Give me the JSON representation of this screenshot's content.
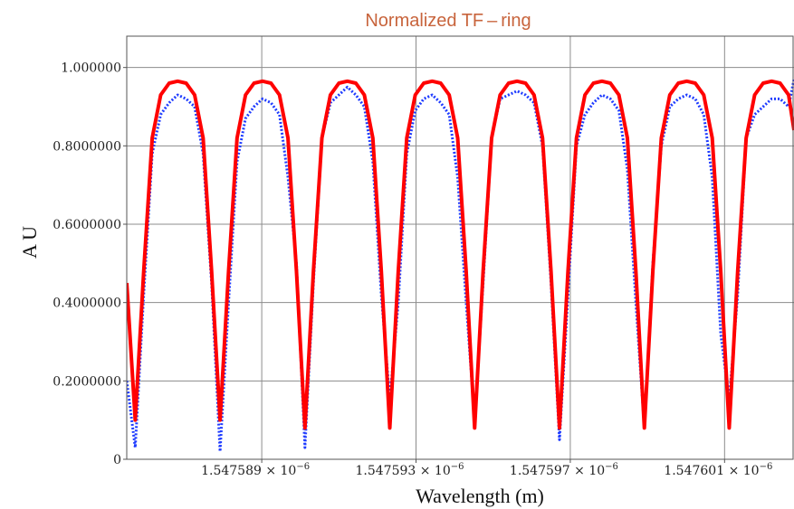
{
  "chart_data": {
    "type": "line",
    "title": "Normalized  TF – ring",
    "xlabel": "Wavelength  (m)",
    "ylabel": "A U",
    "x_unit_multiplier": "× 10⁻⁶",
    "xlim": [
      1.5475855,
      1.5476028
    ],
    "ylim": [
      0,
      1.08
    ],
    "grid": true,
    "x_ticks": [
      {
        "value": 1.547589,
        "label": "1.547589 × 10",
        "exp": "−6"
      },
      {
        "value": 1.547593,
        "label": "1.547593 × 10",
        "exp": "−6"
      },
      {
        "value": 1.547597,
        "label": "1.547597 × 10",
        "exp": "−6"
      },
      {
        "value": 1.547601,
        "label": "1.547601 × 10",
        "exp": "−6"
      }
    ],
    "y_ticks": [
      {
        "value": 0,
        "label": "0"
      },
      {
        "value": 0.2,
        "label": "0.2000000"
      },
      {
        "value": 0.4,
        "label": "0.4000000"
      },
      {
        "value": 0.6,
        "label": "0.6000000"
      },
      {
        "value": 0.8,
        "label": "0.8000000"
      },
      {
        "value": 1.0,
        "label": "1.000000"
      }
    ],
    "series": [
      {
        "color": "#ff0000",
        "style": "solid",
        "x": [
          1.5475855,
          1.54758572,
          1.54758594,
          1.54758616,
          1.54758638,
          1.5475866,
          1.54758682,
          1.54758704,
          1.54758726,
          1.54758748,
          1.5475877,
          1.54758792,
          1.54758814,
          1.54758836,
          1.54758858,
          1.5475888,
          1.54758902,
          1.54758924,
          1.54758946,
          1.54758968,
          1.5475899,
          1.54759012,
          1.54759034,
          1.54759056,
          1.54759078,
          1.547591,
          1.54759122,
          1.54759144,
          1.54759166,
          1.54759188,
          1.5475921,
          1.54759232,
          1.54759254,
          1.54759276,
          1.54759298,
          1.5475932,
          1.54759342,
          1.54759364,
          1.54759386,
          1.54759408,
          1.5475943,
          1.54759452,
          1.54759474,
          1.54759496,
          1.54759518,
          1.5475954,
          1.54759562,
          1.54759584,
          1.54759606,
          1.54759628,
          1.5475965,
          1.54759672,
          1.54759694,
          1.54759716,
          1.54759738,
          1.5475976,
          1.54759782,
          1.54759804,
          1.54759826,
          1.54759848,
          1.5475987,
          1.54759892,
          1.54759914,
          1.54759936,
          1.54759958,
          1.5475998,
          1.54760002,
          1.54760024,
          1.54760046,
          1.54760068,
          1.5476009,
          1.54760112,
          1.54760134,
          1.54760156,
          1.54760178,
          1.547602,
          1.54760222,
          1.54760244,
          1.54760266,
          1.5476028
        ],
        "y": [
          0.45,
          0.1,
          0.48,
          0.82,
          0.93,
          0.96,
          0.965,
          0.96,
          0.93,
          0.82,
          0.48,
          0.1,
          0.48,
          0.82,
          0.93,
          0.96,
          0.965,
          0.96,
          0.93,
          0.82,
          0.48,
          0.08,
          0.48,
          0.82,
          0.93,
          0.96,
          0.965,
          0.96,
          0.93,
          0.82,
          0.48,
          0.08,
          0.48,
          0.82,
          0.93,
          0.96,
          0.965,
          0.96,
          0.93,
          0.82,
          0.48,
          0.08,
          0.48,
          0.82,
          0.93,
          0.96,
          0.965,
          0.96,
          0.93,
          0.82,
          0.48,
          0.08,
          0.48,
          0.82,
          0.93,
          0.96,
          0.965,
          0.96,
          0.93,
          0.82,
          0.48,
          0.08,
          0.48,
          0.82,
          0.93,
          0.96,
          0.965,
          0.96,
          0.93,
          0.82,
          0.48,
          0.08,
          0.48,
          0.82,
          0.93,
          0.96,
          0.965,
          0.96,
          0.93,
          0.84
        ]
      },
      {
        "color": "#1f3cff",
        "style": "dotted",
        "x": [
          1.5475855,
          1.54758572,
          1.54758594,
          1.54758616,
          1.54758638,
          1.5475866,
          1.54758682,
          1.54758704,
          1.54758726,
          1.54758748,
          1.5475877,
          1.54758792,
          1.54758814,
          1.54758836,
          1.54758858,
          1.5475888,
          1.54758902,
          1.54758924,
          1.54758946,
          1.54758968,
          1.5475899,
          1.54759012,
          1.54759034,
          1.54759056,
          1.54759078,
          1.547591,
          1.54759122,
          1.54759144,
          1.54759166,
          1.54759188,
          1.5475921,
          1.54759232,
          1.54759254,
          1.54759276,
          1.54759298,
          1.5475932,
          1.54759342,
          1.54759364,
          1.54759386,
          1.54759408,
          1.5475943,
          1.54759452,
          1.54759474,
          1.54759496,
          1.54759518,
          1.5475954,
          1.54759562,
          1.54759584,
          1.54759606,
          1.54759628,
          1.5475965,
          1.54759672,
          1.54759694,
          1.54759716,
          1.54759738,
          1.5475976,
          1.54759782,
          1.54759804,
          1.54759826,
          1.54759848,
          1.5475987,
          1.54759892,
          1.54759914,
          1.54759936,
          1.54759958,
          1.5475998,
          1.54760002,
          1.54760024,
          1.54760046,
          1.54760068,
          1.5476009,
          1.54760112,
          1.54760134,
          1.54760156,
          1.54760178,
          1.547602,
          1.54760222,
          1.54760244,
          1.54760266,
          1.5476028
        ],
        "y": [
          0.2,
          0.03,
          0.42,
          0.78,
          0.88,
          0.91,
          0.93,
          0.92,
          0.9,
          0.78,
          0.45,
          0.02,
          0.4,
          0.76,
          0.87,
          0.9,
          0.92,
          0.91,
          0.88,
          0.72,
          0.5,
          0.03,
          0.45,
          0.82,
          0.91,
          0.93,
          0.95,
          0.93,
          0.9,
          0.76,
          0.42,
          0.15,
          0.4,
          0.78,
          0.89,
          0.92,
          0.93,
          0.91,
          0.88,
          0.72,
          0.4,
          0.1,
          0.45,
          0.82,
          0.92,
          0.93,
          0.94,
          0.93,
          0.91,
          0.8,
          0.45,
          0.05,
          0.42,
          0.8,
          0.88,
          0.91,
          0.93,
          0.92,
          0.89,
          0.74,
          0.4,
          0.08,
          0.5,
          0.8,
          0.9,
          0.92,
          0.93,
          0.92,
          0.88,
          0.72,
          0.32,
          0.15,
          0.42,
          0.82,
          0.88,
          0.9,
          0.92,
          0.92,
          0.9,
          0.97
        ]
      }
    ]
  }
}
